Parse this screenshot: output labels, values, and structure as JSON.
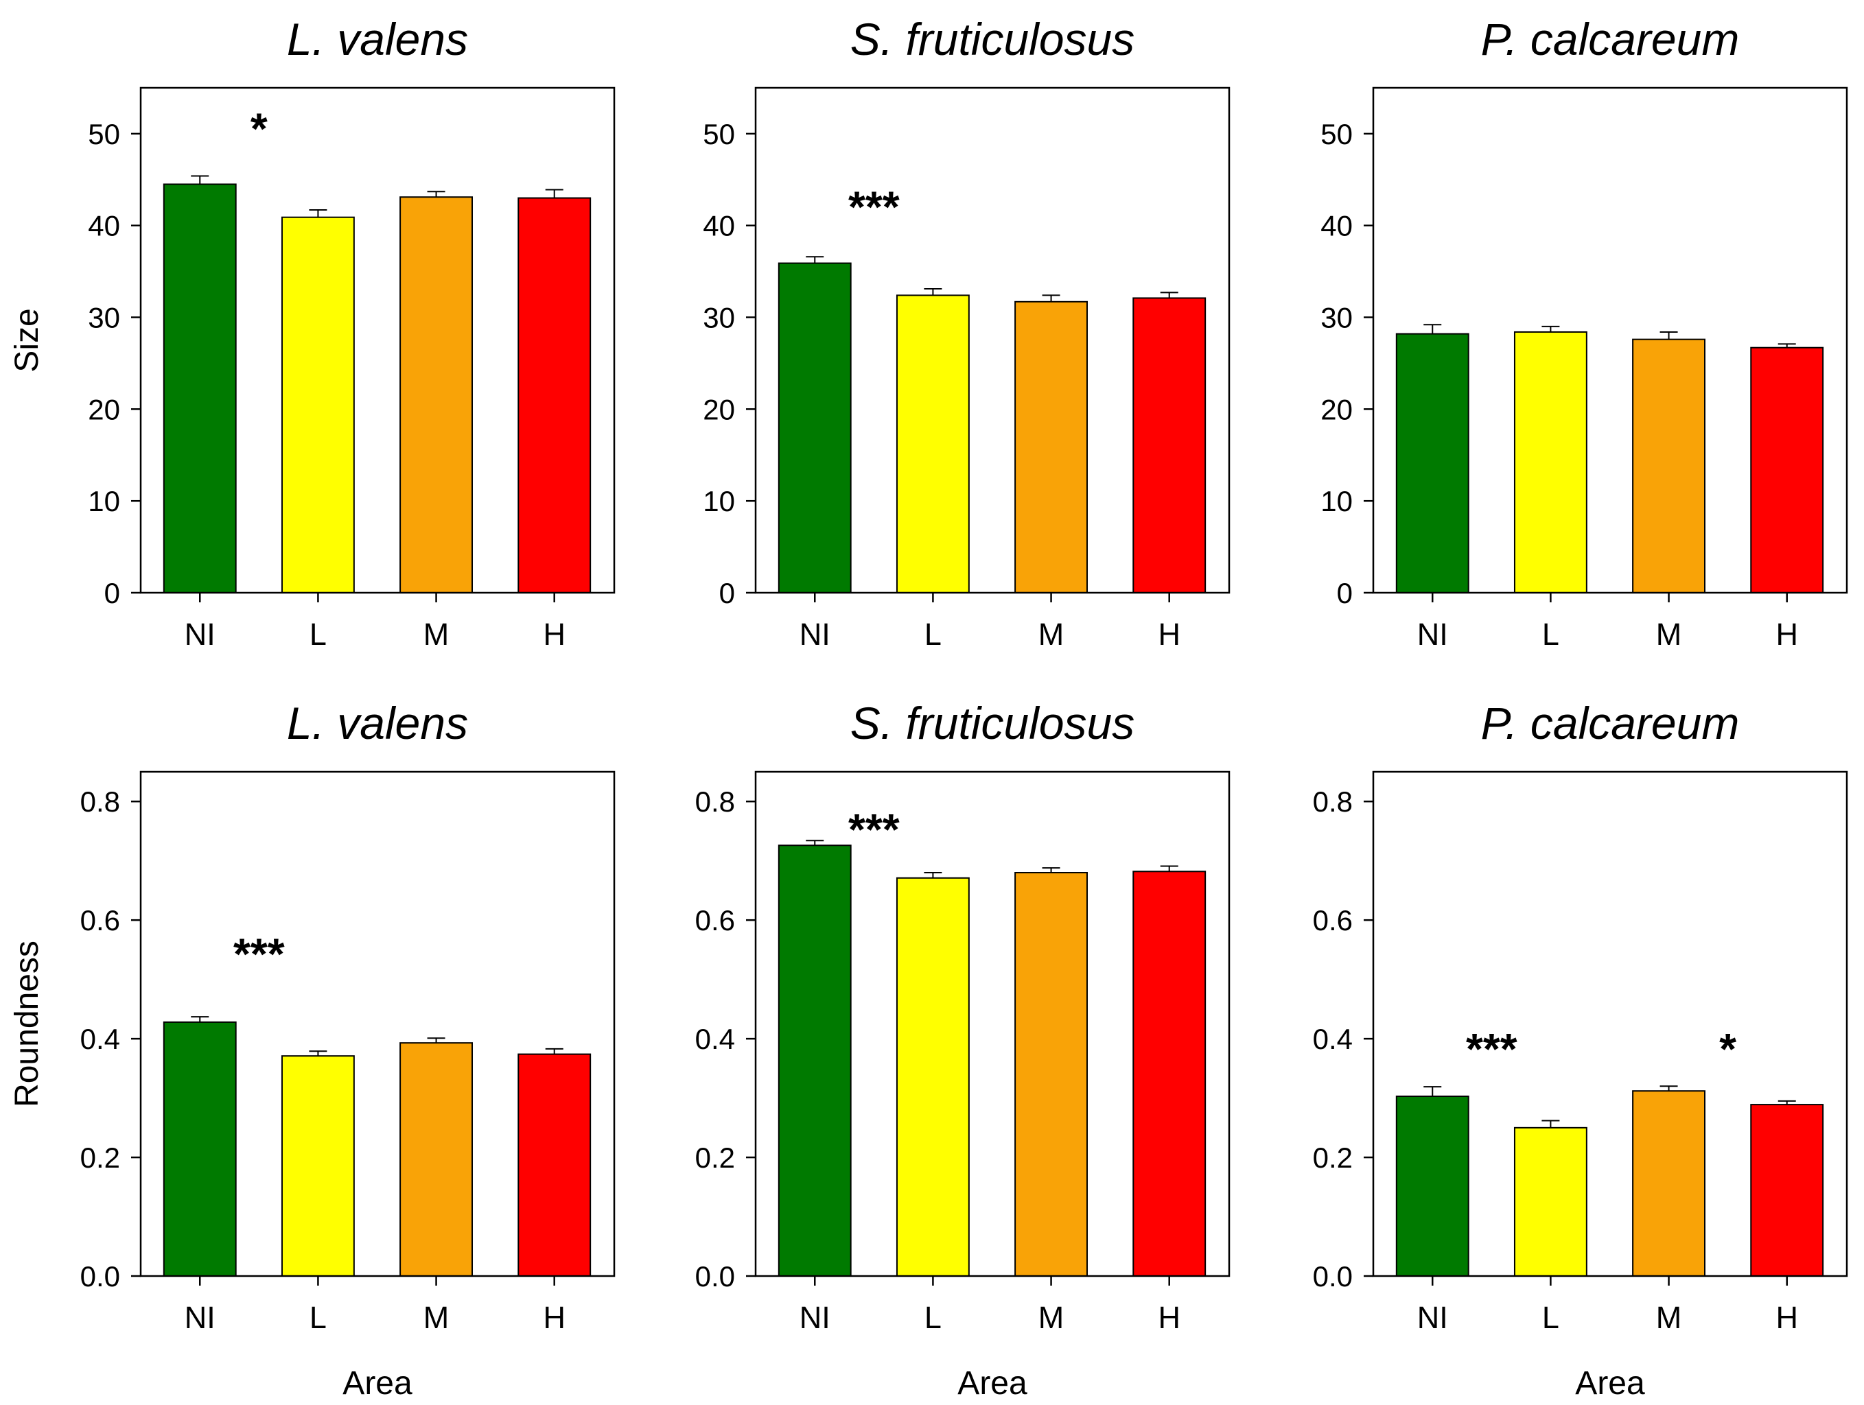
{
  "chart_data": [
    {
      "type": "bar",
      "title": "L. valens",
      "xlabel": "",
      "ylabel": "Size",
      "categories": [
        "NI",
        "L",
        "M",
        "H"
      ],
      "values": [
        44.5,
        40.9,
        43.1,
        43.0
      ],
      "errors": [
        0.9,
        0.8,
        0.6,
        0.9
      ],
      "colors": [
        "#007a00",
        "#ffff00",
        "#f9a307",
        "#ff0000"
      ],
      "ylim": [
        0,
        55
      ],
      "yticks": [
        0,
        10,
        20,
        30,
        40,
        50
      ],
      "annotations": [
        {
          "text": "*",
          "between": "NI-L",
          "y": 51
        }
      ]
    },
    {
      "type": "bar",
      "title": "S. fruticulosus",
      "xlabel": "",
      "ylabel": "",
      "categories": [
        "NI",
        "L",
        "M",
        "H"
      ],
      "values": [
        35.9,
        32.4,
        31.7,
        32.1
      ],
      "errors": [
        0.7,
        0.7,
        0.7,
        0.6
      ],
      "colors": [
        "#007a00",
        "#ffff00",
        "#f9a307",
        "#ff0000"
      ],
      "ylim": [
        0,
        55
      ],
      "yticks": [
        0,
        10,
        20,
        30,
        40,
        50
      ],
      "annotations": [
        {
          "text": "***",
          "between": "NI-L",
          "y": 42.5
        }
      ]
    },
    {
      "type": "bar",
      "title": "P. calcareum",
      "xlabel": "",
      "ylabel": "",
      "categories": [
        "NI",
        "L",
        "M",
        "H"
      ],
      "values": [
        28.2,
        28.4,
        27.6,
        26.7
      ],
      "errors": [
        1.0,
        0.6,
        0.8,
        0.4
      ],
      "colors": [
        "#007a00",
        "#ffff00",
        "#f9a307",
        "#ff0000"
      ],
      "ylim": [
        0,
        55
      ],
      "yticks": [
        0,
        10,
        20,
        30,
        40,
        50
      ],
      "annotations": []
    },
    {
      "type": "bar",
      "title": "L. valens",
      "xlabel": "Area",
      "ylabel": "Roundness",
      "categories": [
        "NI",
        "L",
        "M",
        "H"
      ],
      "values": [
        0.428,
        0.371,
        0.393,
        0.374
      ],
      "errors": [
        0.009,
        0.008,
        0.008,
        0.009
      ],
      "colors": [
        "#007a00",
        "#ffff00",
        "#f9a307",
        "#ff0000"
      ],
      "ylim": [
        0,
        0.85
      ],
      "yticks": [
        0.0,
        0.2,
        0.4,
        0.6,
        0.8
      ],
      "annotations": [
        {
          "text": "***",
          "between": "NI-L",
          "y": 0.55
        }
      ]
    },
    {
      "type": "bar",
      "title": "S. fruticulosus",
      "xlabel": "Area",
      "ylabel": "",
      "categories": [
        "NI",
        "L",
        "M",
        "H"
      ],
      "values": [
        0.726,
        0.671,
        0.68,
        0.682
      ],
      "errors": [
        0.008,
        0.009,
        0.008,
        0.009
      ],
      "colors": [
        "#007a00",
        "#ffff00",
        "#f9a307",
        "#ff0000"
      ],
      "ylim": [
        0,
        0.85
      ],
      "yticks": [
        0.0,
        0.2,
        0.4,
        0.6,
        0.8
      ],
      "annotations": [
        {
          "text": "***",
          "between": "NI-L",
          "y": 0.76
        }
      ]
    },
    {
      "type": "bar",
      "title": "P. calcareum",
      "xlabel": "Area",
      "ylabel": "",
      "categories": [
        "NI",
        "L",
        "M",
        "H"
      ],
      "values": [
        0.303,
        0.25,
        0.312,
        0.289
      ],
      "errors": [
        0.016,
        0.012,
        0.008,
        0.006
      ],
      "colors": [
        "#007a00",
        "#ffff00",
        "#f9a307",
        "#ff0000"
      ],
      "ylim": [
        0,
        0.85
      ],
      "yticks": [
        0.0,
        0.2,
        0.4,
        0.6,
        0.8
      ],
      "annotations": [
        {
          "text": "***",
          "between": "NI-L",
          "y": 0.39
        },
        {
          "text": "*",
          "between": "M-H",
          "y": 0.39
        }
      ]
    }
  ]
}
